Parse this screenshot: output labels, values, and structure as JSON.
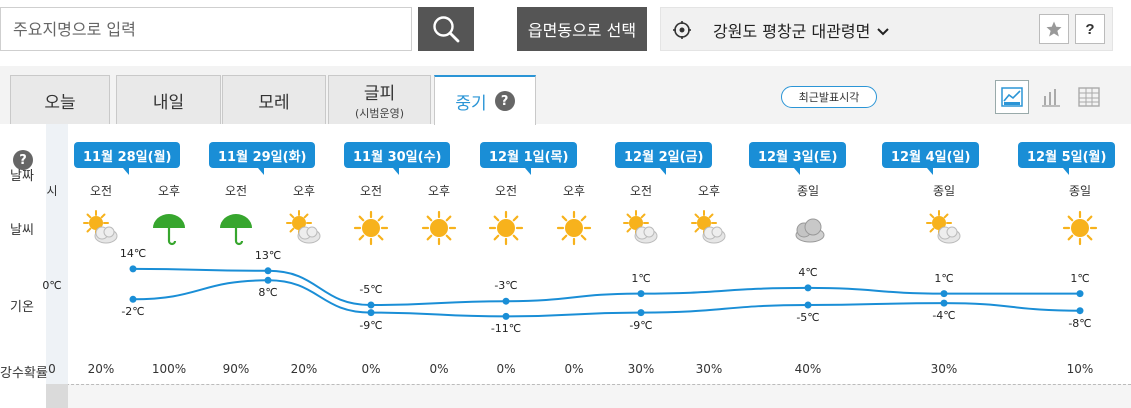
{
  "search": {
    "placeholder": "주요지명으로 입력"
  },
  "region_select_label": "읍면동으로 선택",
  "location": {
    "text": "강원도 평창군 대관령면",
    "chevron": "chevron-down-icon"
  },
  "help_label": "?",
  "tabs": [
    {
      "label": "오늘",
      "sub": ""
    },
    {
      "label": "내일",
      "sub": ""
    },
    {
      "label": "모레",
      "sub": ""
    },
    {
      "label": "글피",
      "sub": "(시범운영)"
    },
    {
      "label": "중기",
      "sub": ""
    }
  ],
  "latest_label": "최근발표시각",
  "row_labels": {
    "date": "날짜",
    "weather": "날씨",
    "temp": "기온",
    "rain": "강수확률"
  },
  "cut_column": {
    "ampm": "시",
    "temp": "0℃",
    "rain": "0"
  },
  "dates": [
    "11월 28일(월)",
    "11월 29일(화)",
    "11월 30일(수)",
    "12월 1일(목)",
    "12월 2일(금)",
    "12월 3일(토)",
    "12월 4일(일)",
    "12월 5일(월)"
  ],
  "slots": [
    {
      "ampm": "오전",
      "icon": "partly-cloudy",
      "rain": "20%",
      "high": "14℃",
      "low": "-2℃"
    },
    {
      "ampm": "오후",
      "icon": "umbrella",
      "rain": "100%"
    },
    {
      "ampm": "오전",
      "icon": "umbrella",
      "rain": "90%",
      "high": "13℃",
      "low": "8℃"
    },
    {
      "ampm": "오후",
      "icon": "partly-cloudy",
      "rain": "20%"
    },
    {
      "ampm": "오전",
      "icon": "sun",
      "rain": "0%",
      "high": "-5℃",
      "low": "-9℃"
    },
    {
      "ampm": "오후",
      "icon": "sun",
      "rain": "0%"
    },
    {
      "ampm": "오전",
      "icon": "sun",
      "rain": "0%",
      "high": "-3℃",
      "low": "-11℃"
    },
    {
      "ampm": "오후",
      "icon": "sun",
      "rain": "0%"
    },
    {
      "ampm": "오전",
      "icon": "partly-cloudy",
      "rain": "30%",
      "high": "1℃",
      "low": "-9℃"
    },
    {
      "ampm": "오후",
      "icon": "partly-cloudy",
      "rain": "30%"
    },
    {
      "ampm": "종일",
      "icon": "cloudy",
      "rain": "40%",
      "high": "4℃",
      "low": "-5℃"
    },
    {
      "ampm": "종일",
      "icon": "partly-cloudy",
      "rain": "30%",
      "high": "1℃",
      "low": "-4℃"
    },
    {
      "ampm": "종일",
      "icon": "sun",
      "rain": "10%",
      "high": "1℃",
      "low": "-8℃"
    }
  ],
  "colors": {
    "accent": "#1a8ed6",
    "line": "#1a8ed6",
    "sun": "#f7b21c",
    "cloud": "#d0d0d0",
    "umbrella": "#37a62e"
  }
}
